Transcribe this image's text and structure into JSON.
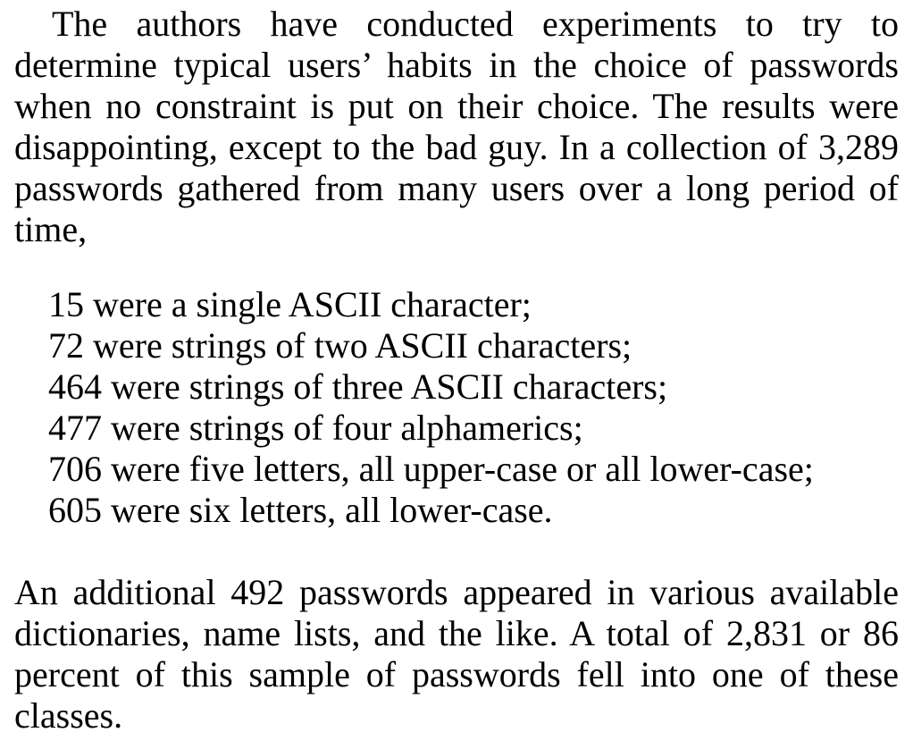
{
  "document": {
    "intro_paragraph": "The authors have conducted experiments to try to determine typical users’ habits in the choice of passwords when no constraint is put on their choice. The results were disappointing, except to the bad guy. In a collection of 3,289 passwords gathered from many users over a long period of time,",
    "list_items": [
      "15 were a single ASCII character;",
      "72 were strings of two ASCII characters;",
      "464 were strings of three ASCII characters;",
      "477 were strings of four alphamerics;",
      "706 were five letters, all upper-case or all lower-case;",
      "605 were six letters, all lower-case."
    ],
    "closing_paragraph": "An additional 492 passwords appeared in various available dictionaries, name lists, and the like. A total of 2,831 or 86 percent of this sample of passwords fell into one of these classes."
  }
}
